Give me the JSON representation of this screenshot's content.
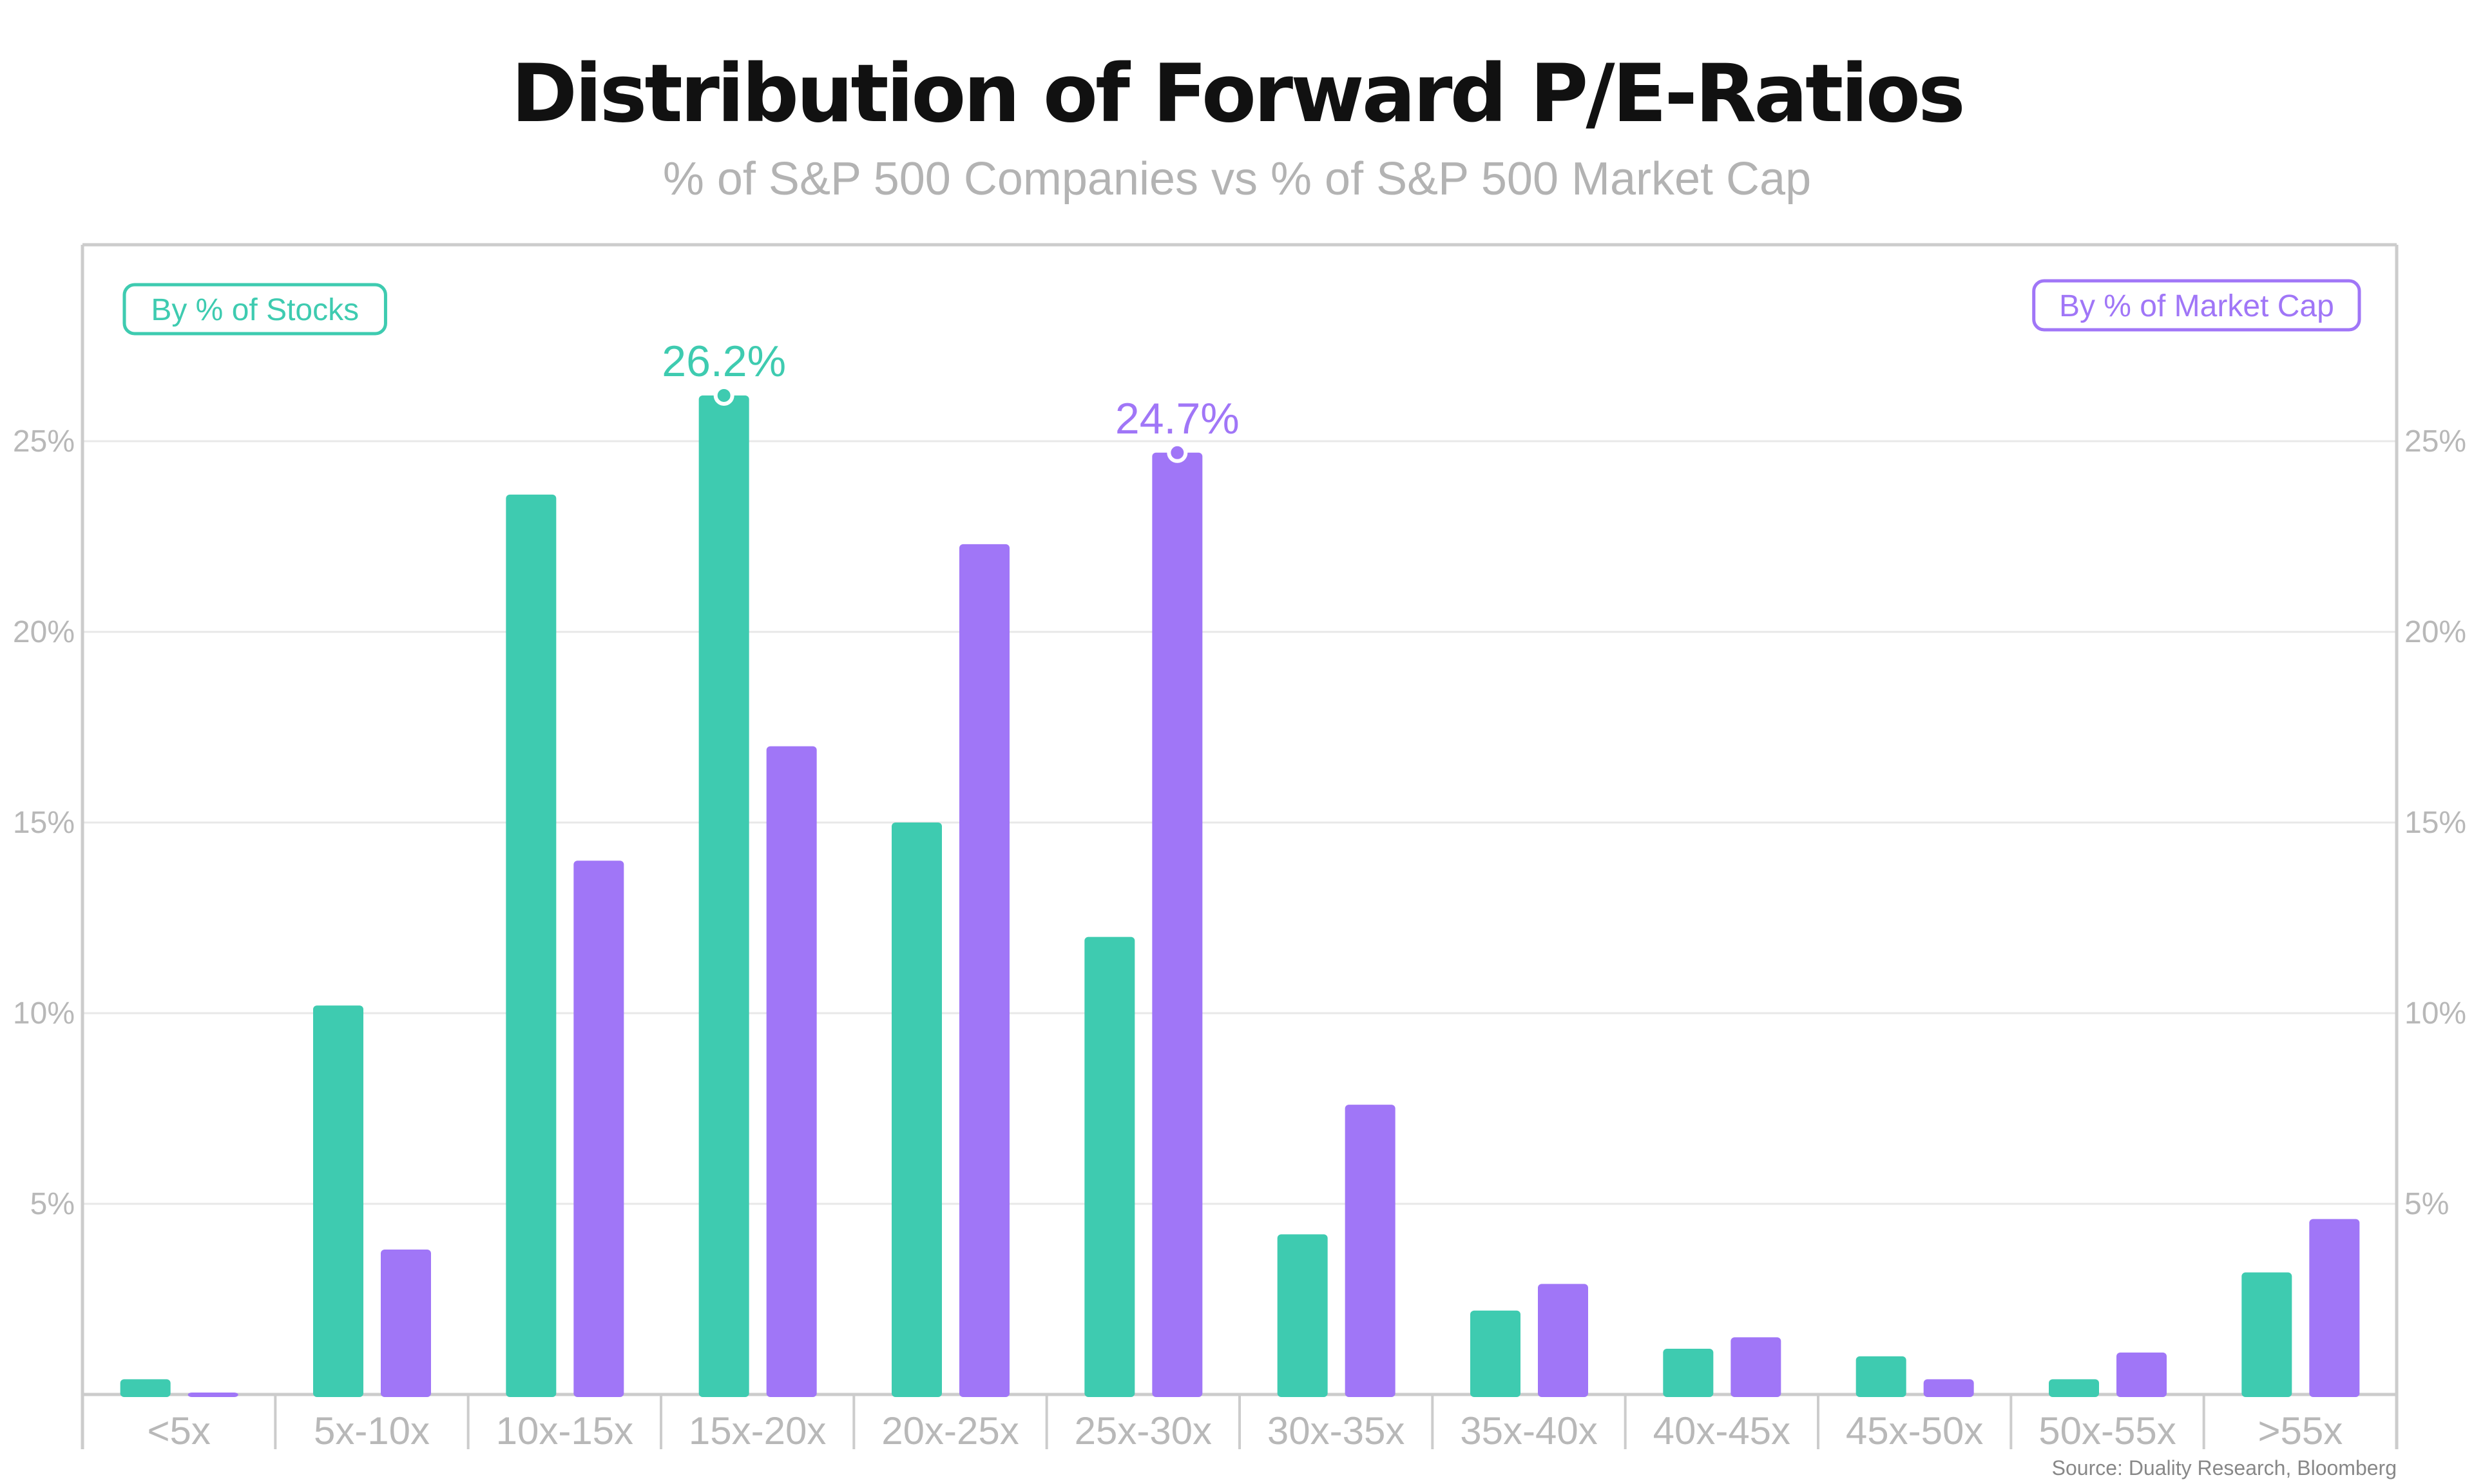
{
  "chart_data": {
    "type": "bar",
    "title": "Distribution of Forward P/E-Ratios",
    "subtitle": "% of S&P 500 Companies vs % of S&P 500 Market Cap",
    "source": "Source: Duality Research, Bloomberg",
    "categories": [
      "<5x",
      "5x-10x",
      "10x-15x",
      "15x-20x",
      "20x-25x",
      "25x-30x",
      "30x-35x",
      "35x-40x",
      "40x-45x",
      "45x-50x",
      "50x-55x",
      ">55x"
    ],
    "series": [
      {
        "name": "By % of Stocks",
        "color": "#3ECBB0",
        "values": [
          0.4,
          10.2,
          23.6,
          26.2,
          15.0,
          12.0,
          4.2,
          2.2,
          1.2,
          1.0,
          0.4,
          3.2
        ]
      },
      {
        "name": "By % of Market Cap",
        "color": "#A076F7",
        "values": [
          0.05,
          3.8,
          14.0,
          17.0,
          22.3,
          24.7,
          7.6,
          2.9,
          1.5,
          0.4,
          1.1,
          4.6
        ]
      }
    ],
    "annotations": [
      {
        "series": 0,
        "category": 3,
        "label": "26.2%"
      },
      {
        "series": 1,
        "category": 5,
        "label": "24.7%"
      }
    ],
    "ylim": [
      0,
      29
    ],
    "yticks": [
      {
        "value": 5,
        "label": "5%"
      },
      {
        "value": 10,
        "label": "10%"
      },
      {
        "value": 15,
        "label": "15%"
      },
      {
        "value": 20,
        "label": "20%"
      },
      {
        "value": 25,
        "label": "25%"
      }
    ],
    "xlabel": "",
    "ylabel": "",
    "grid": true,
    "legend": "boxed labels top-left and top-right"
  }
}
